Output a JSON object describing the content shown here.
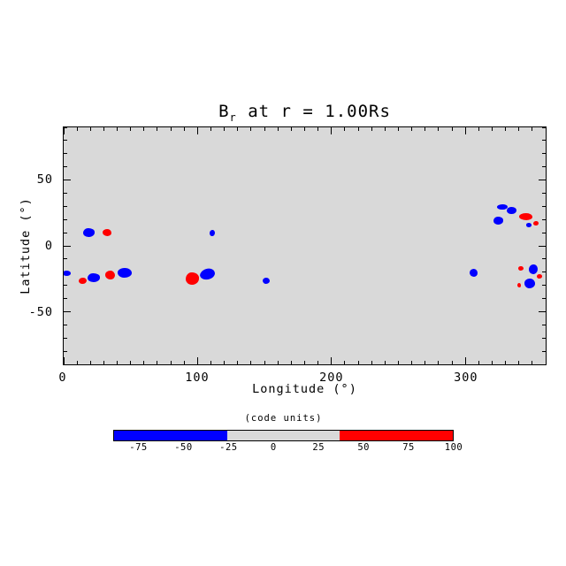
{
  "colors": {
    "negative": "#0000ff",
    "positive": "#ff0000",
    "plot_background": "#d9d9d9",
    "frame": "#000000",
    "page_background": "#ffffff"
  },
  "chart_data": {
    "type": "scatter",
    "title": "Br at r = 1.00Rs",
    "title_parts": {
      "base": "B",
      "subscript": "r",
      "rest": " at r = 1.00Rs"
    },
    "xlabel": "Longitude (°)",
    "ylabel": "Latitude (°)",
    "xlim": [
      0,
      360
    ],
    "ylim": [
      -90,
      90
    ],
    "x_major_ticks": [
      0,
      100,
      200,
      300
    ],
    "x_major_interval": 100,
    "x_minor_step": 10,
    "y_major_ticks": [
      -50,
      0,
      50
    ],
    "y_major_interval": 50,
    "y_minor_step": 10,
    "grid": false,
    "plot_background": "#d9d9d9",
    "regions": [
      {
        "lon": 19.1,
        "lat": 10.0,
        "w": 8.6,
        "h": 6.7,
        "polarity": "negative"
      },
      {
        "lon": 32.3,
        "lat": 10.3,
        "w": 6.6,
        "h": 5.3,
        "polarity": "positive"
      },
      {
        "lon": 2.3,
        "lat": -20.7,
        "w": 6.6,
        "h": 4.0,
        "polarity": "negative"
      },
      {
        "lon": 14.2,
        "lat": -26.3,
        "w": 5.9,
        "h": 4.7,
        "polarity": "positive"
      },
      {
        "lon": 22.4,
        "lat": -24.0,
        "w": 9.2,
        "h": 6.7,
        "polarity": "negative"
      },
      {
        "lon": 34.6,
        "lat": -22.0,
        "w": 7.2,
        "h": 6.7,
        "polarity": "positive"
      },
      {
        "lon": 45.4,
        "lat": -20.3,
        "w": 10.5,
        "h": 7.3,
        "polarity": "negative"
      },
      {
        "lon": 111.2,
        "lat": 9.7,
        "w": 3.9,
        "h": 4.7,
        "polarity": "negative"
      },
      {
        "lon": 96.4,
        "lat": -25.0,
        "w": 9.9,
        "h": 9.3,
        "polarity": "positive"
      },
      {
        "lon": 107.6,
        "lat": -21.7,
        "w": 11.2,
        "h": 8.0,
        "polarity": "negative",
        "rot": -18
      },
      {
        "lon": 151.4,
        "lat": -26.3,
        "w": 5.3,
        "h": 4.7,
        "polarity": "negative"
      },
      {
        "lon": 327.8,
        "lat": 29.5,
        "w": 7.9,
        "h": 4.0,
        "polarity": "negative"
      },
      {
        "lon": 334.6,
        "lat": 26.7,
        "w": 7.2,
        "h": 5.5,
        "polarity": "negative"
      },
      {
        "lon": 345.2,
        "lat": 22.0,
        "w": 9.9,
        "h": 5.3,
        "polarity": "positive"
      },
      {
        "lon": 347.5,
        "lat": 16.0,
        "w": 4.3,
        "h": 3.3,
        "polarity": "negative"
      },
      {
        "lon": 352.8,
        "lat": 17.0,
        "w": 3.9,
        "h": 3.3,
        "polarity": "positive"
      },
      {
        "lon": 324.8,
        "lat": 19.3,
        "w": 7.2,
        "h": 6.0,
        "polarity": "negative"
      },
      {
        "lon": 306.4,
        "lat": -20.3,
        "w": 5.9,
        "h": 6.0,
        "polarity": "negative"
      },
      {
        "lon": 341.6,
        "lat": -17.0,
        "w": 3.9,
        "h": 3.3,
        "polarity": "positive"
      },
      {
        "lon": 350.8,
        "lat": -17.7,
        "w": 6.6,
        "h": 7.3,
        "polarity": "negative"
      },
      {
        "lon": 355.4,
        "lat": -23.0,
        "w": 3.9,
        "h": 3.3,
        "polarity": "positive"
      },
      {
        "lon": 340.3,
        "lat": -29.7,
        "w": 2.6,
        "h": 3.3,
        "polarity": "positive"
      },
      {
        "lon": 348.2,
        "lat": -28.3,
        "w": 7.9,
        "h": 7.3,
        "polarity": "negative"
      }
    ],
    "colorbar": {
      "title": "(code units)",
      "range": [
        -89,
        100
      ],
      "ticks": [
        -75,
        -50,
        -25,
        0,
        25,
        50,
        75,
        100
      ],
      "segments": [
        {
          "color": "#0000ff",
          "from": 0,
          "to": 0.3333
        },
        {
          "color": "#d9d9d9",
          "from": 0.3333,
          "to": 0.6667
        },
        {
          "color": "#ff0000",
          "from": 0.6667,
          "to": 1
        }
      ],
      "legend_position": "bottom"
    }
  }
}
